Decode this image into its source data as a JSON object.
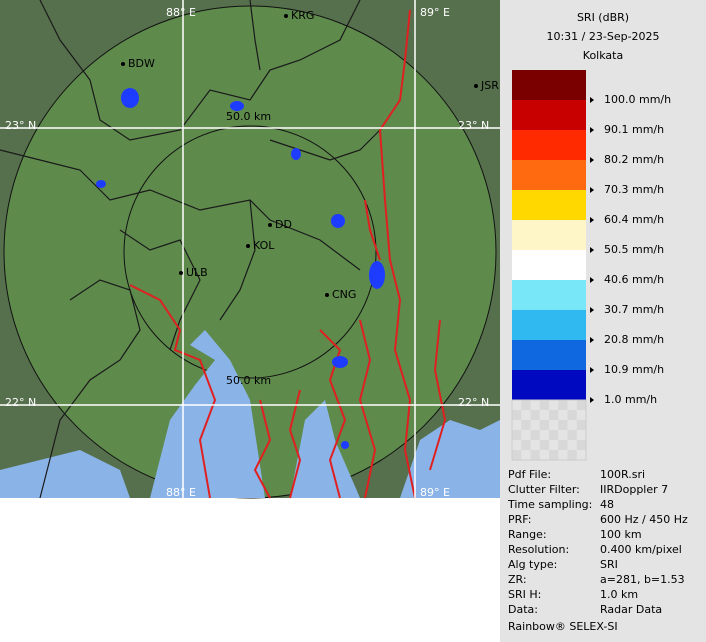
{
  "map": {
    "grid_labels": [
      "88° E",
      "89° E",
      "23° N",
      "23° N",
      "22° N",
      "22° N",
      "88° E",
      "89° E"
    ],
    "range_labels": [
      "50.0 km",
      "50.0 km"
    ],
    "cities": [
      "BDW",
      "KRG",
      "JSR",
      "DD",
      "KOL",
      "ULB",
      "CNG"
    ]
  },
  "legend": {
    "title": "SRI (dBR)",
    "time": "10:31 / 23-Sep-2025",
    "site": "Kolkata",
    "colors": [
      "#7a0000",
      "#c80000",
      "#ff2a00",
      "#ff6a10",
      "#ffd800",
      "#fff6c8",
      "#ffffff",
      "#78e8f8",
      "#30b8f0",
      "#1068e0",
      "#0008c0"
    ],
    "labels": [
      "100.0 mm/h",
      "90.1 mm/h",
      "80.2 mm/h",
      "70.3 mm/h",
      "60.4 mm/h",
      "50.5 mm/h",
      "40.6 mm/h",
      "30.7 mm/h",
      "20.8 mm/h",
      "10.9 mm/h",
      "1.0 mm/h"
    ]
  },
  "info": {
    "rows": [
      [
        "Pdf File:",
        "100R.sri"
      ],
      [
        "Clutter Filter:",
        "IIRDoppler 7"
      ],
      [
        "Time sampling:",
        "48"
      ],
      [
        "PRF:",
        "600 Hz / 450 Hz"
      ],
      [
        "Range:",
        "100 km"
      ],
      [
        "Resolution:",
        "0.400 km/pixel"
      ],
      [
        "Alg type:",
        "SRI"
      ],
      [
        "ZR:",
        "a=281, b=1.53"
      ],
      [
        "SRI H:",
        "1.0 km"
      ],
      [
        "Data:",
        "Radar Data"
      ]
    ],
    "footer": "Rainbow® SELEX-SI"
  }
}
